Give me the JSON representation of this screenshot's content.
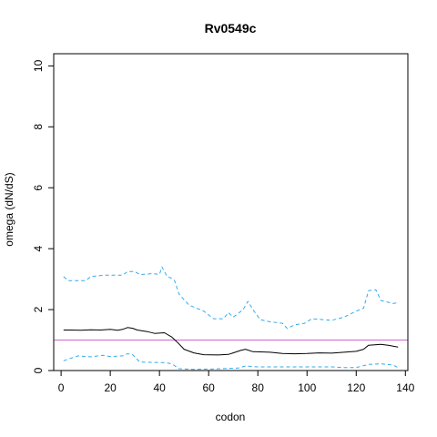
{
  "chart_data": {
    "type": "line",
    "title": "Rv0549c",
    "xlabel": "codon",
    "ylabel": "omega (dN/dS)",
    "xlim": [
      -3,
      141
    ],
    "ylim": [
      0,
      10.4
    ],
    "xticks": [
      0,
      20,
      40,
      60,
      80,
      100,
      120,
      140
    ],
    "yticks": [
      0,
      2,
      4,
      6,
      8,
      10
    ],
    "reference_line": {
      "y": 1,
      "color": "#cc66cc"
    },
    "grid": false,
    "series": [
      {
        "role": "estimate",
        "color": "#000000",
        "dash": "solid",
        "points": [
          [
            1,
            1.33
          ],
          [
            4,
            1.33
          ],
          [
            8,
            1.32
          ],
          [
            12,
            1.34
          ],
          [
            16,
            1.33
          ],
          [
            20,
            1.35
          ],
          [
            23,
            1.32
          ],
          [
            25,
            1.35
          ],
          [
            27,
            1.41
          ],
          [
            29,
            1.39
          ],
          [
            31,
            1.33
          ],
          [
            35,
            1.28
          ],
          [
            38,
            1.22
          ],
          [
            42,
            1.24
          ],
          [
            45,
            1.1
          ],
          [
            47,
            0.95
          ],
          [
            50,
            0.7
          ],
          [
            54,
            0.58
          ],
          [
            58,
            0.52
          ],
          [
            64,
            0.51
          ],
          [
            68,
            0.53
          ],
          [
            70,
            0.58
          ],
          [
            73,
            0.66
          ],
          [
            75,
            0.7
          ],
          [
            78,
            0.62
          ],
          [
            85,
            0.6
          ],
          [
            90,
            0.56
          ],
          [
            95,
            0.55
          ],
          [
            100,
            0.56
          ],
          [
            105,
            0.58
          ],
          [
            110,
            0.57
          ],
          [
            115,
            0.6
          ],
          [
            120,
            0.63
          ],
          [
            123,
            0.7
          ],
          [
            125,
            0.83
          ],
          [
            130,
            0.86
          ],
          [
            133,
            0.83
          ],
          [
            137,
            0.77
          ]
        ]
      },
      {
        "role": "upper-bound",
        "color": "#33aaee",
        "dash": "dashed",
        "points": [
          [
            1,
            3.08
          ],
          [
            3,
            2.95
          ],
          [
            10,
            2.95
          ],
          [
            12,
            3.08
          ],
          [
            17,
            3.13
          ],
          [
            25,
            3.13
          ],
          [
            27,
            3.25
          ],
          [
            30,
            3.25
          ],
          [
            32,
            3.15
          ],
          [
            37,
            3.18
          ],
          [
            40,
            3.16
          ],
          [
            41,
            3.4
          ],
          [
            43,
            3.1
          ],
          [
            46,
            2.98
          ],
          [
            48,
            2.5
          ],
          [
            52,
            2.15
          ],
          [
            58,
            1.95
          ],
          [
            62,
            1.7
          ],
          [
            66,
            1.7
          ],
          [
            68,
            1.9
          ],
          [
            70,
            1.75
          ],
          [
            74,
            2.0
          ],
          [
            76,
            2.27
          ],
          [
            78,
            2.0
          ],
          [
            81,
            1.67
          ],
          [
            85,
            1.6
          ],
          [
            90,
            1.55
          ],
          [
            92,
            1.38
          ],
          [
            95,
            1.5
          ],
          [
            99,
            1.55
          ],
          [
            102,
            1.7
          ],
          [
            110,
            1.65
          ],
          [
            115,
            1.75
          ],
          [
            120,
            1.95
          ],
          [
            123,
            2.05
          ],
          [
            125,
            2.62
          ],
          [
            128,
            2.65
          ],
          [
            130,
            2.3
          ],
          [
            135,
            2.2
          ],
          [
            137,
            2.23
          ]
        ]
      },
      {
        "role": "lower-bound",
        "color": "#33aaee",
        "dash": "dashed",
        "points": [
          [
            1,
            0.32
          ],
          [
            3,
            0.38
          ],
          [
            7,
            0.48
          ],
          [
            12,
            0.45
          ],
          [
            17,
            0.5
          ],
          [
            20,
            0.46
          ],
          [
            25,
            0.48
          ],
          [
            27,
            0.55
          ],
          [
            29,
            0.53
          ],
          [
            32,
            0.28
          ],
          [
            36,
            0.27
          ],
          [
            42,
            0.26
          ],
          [
            45,
            0.22
          ],
          [
            48,
            0.06
          ],
          [
            54,
            0.04
          ],
          [
            62,
            0.05
          ],
          [
            72,
            0.08
          ],
          [
            75,
            0.15
          ],
          [
            80,
            0.12
          ],
          [
            90,
            0.12
          ],
          [
            100,
            0.12
          ],
          [
            110,
            0.12
          ],
          [
            115,
            0.1
          ],
          [
            120,
            0.1
          ],
          [
            125,
            0.2
          ],
          [
            130,
            0.22
          ],
          [
            135,
            0.18
          ],
          [
            137,
            0.1
          ]
        ]
      }
    ]
  }
}
